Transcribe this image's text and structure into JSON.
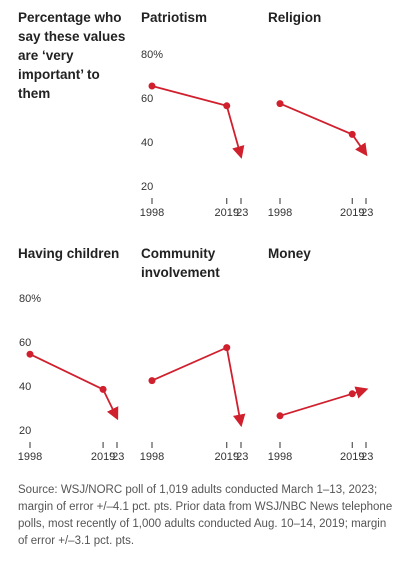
{
  "header": "Percentage who say these values are ‘very important’ to them",
  "chart_data": [
    {
      "type": "line",
      "title": "Patriotism",
      "x": [
        1998,
        2019,
        2023
      ],
      "values": [
        70,
        61,
        38
      ],
      "color": "#d0202e",
      "xlim": [
        1998,
        2023
      ],
      "xticks": [
        1998,
        2019,
        {
          "value": 2023,
          "label": "’23"
        }
      ],
      "ylim": [
        20,
        80
      ],
      "yticks": [
        20,
        40,
        60,
        {
          "value": 80,
          "label": "80%"
        }
      ]
    },
    {
      "type": "line",
      "title": "Religion",
      "x": [
        1998,
        2019,
        2023
      ],
      "values": [
        62,
        48,
        39
      ],
      "color": "#d0202e",
      "xlim": [
        1998,
        2023
      ],
      "xticks": [
        1998,
        2019,
        {
          "value": 2023,
          "label": "’23"
        }
      ],
      "ylim": [
        20,
        80
      ]
    },
    {
      "type": "line",
      "title": "Having children",
      "x": [
        1998,
        2019,
        2023
      ],
      "values": [
        59,
        43,
        30
      ],
      "color": "#d0202e",
      "xlim": [
        1998,
        2023
      ],
      "xticks": [
        1998,
        2019,
        {
          "value": 2023,
          "label": "’23"
        }
      ],
      "ylim": [
        20,
        80
      ],
      "yticks": [
        20,
        40,
        60,
        {
          "value": 80,
          "label": "80%"
        }
      ]
    },
    {
      "type": "line",
      "title": "Community involvement",
      "x": [
        1998,
        2019,
        2023
      ],
      "values": [
        47,
        62,
        27
      ],
      "color": "#d0202e",
      "xlim": [
        1998,
        2023
      ],
      "xticks": [
        1998,
        2019,
        {
          "value": 2023,
          "label": "’23"
        }
      ],
      "ylim": [
        20,
        80
      ]
    },
    {
      "type": "line",
      "title": "Money",
      "x": [
        1998,
        2019,
        2023
      ],
      "values": [
        31,
        41,
        43
      ],
      "color": "#d0202e",
      "xlim": [
        1998,
        2023
      ],
      "xticks": [
        1998,
        2019,
        {
          "value": 2023,
          "label": "’23"
        }
      ],
      "ylim": [
        20,
        80
      ]
    }
  ],
  "source": "Source: WSJ/NORC poll of 1,019 adults conducted March 1–13, 2023; margin of error +/–4.1 pct. pts. Prior data from WSJ/NBC News telephone polls, most recently of 1,000 adults conducted Aug. 10–14, 2019; margin of error +/–3.1 pct. pts."
}
